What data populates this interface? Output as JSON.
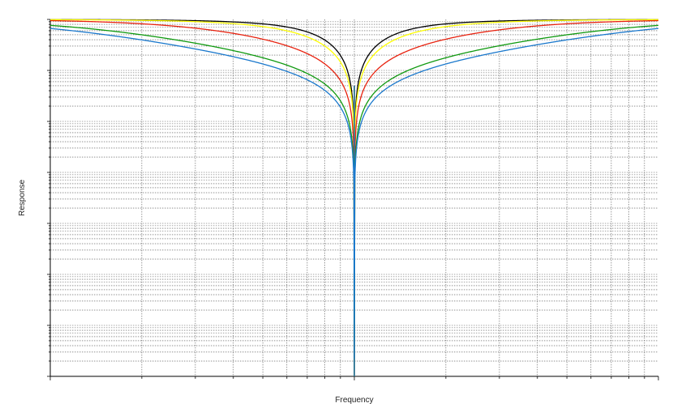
{
  "chart_data": {
    "type": "line",
    "xlabel": "Frequency",
    "ylabel": "Response",
    "x_scale": "log",
    "y_scale": "log",
    "xlim": [
      0.1,
      10
    ],
    "ylim": [
      1e-07,
      1
    ],
    "notch_frequency": 1,
    "grid": true,
    "series": [
      {
        "color": "#000000",
        "r": 0.95
      },
      {
        "color": "#ffff00",
        "r": 0.7
      },
      {
        "color": "#e8220f",
        "r": 0.3
      },
      {
        "color": "#109a10",
        "r": 0.12
      },
      {
        "color": "#1a78cc",
        "r": 0.09
      }
    ]
  }
}
